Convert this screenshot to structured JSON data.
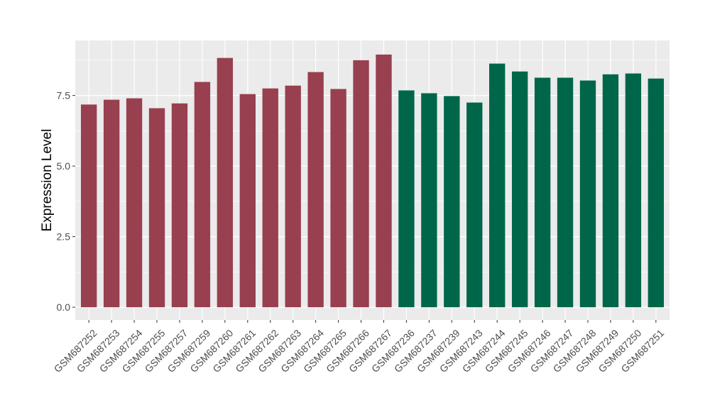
{
  "chart_data": {
    "type": "bar",
    "ylabel": "Expression Level",
    "xlabel": "",
    "title": "",
    "ylim": [
      -0.45,
      9.45
    ],
    "y_ticks": [
      0.0,
      2.5,
      5.0,
      7.5
    ],
    "y_tick_labels": [
      "0.0",
      "2.5",
      "5.0",
      "7.5"
    ],
    "grid": true,
    "colors": {
      "panel_background": "#EBEBEB",
      "grid": "#FFFFFF",
      "group1": "#98404F",
      "group2": "#00664A",
      "axis_text": "#4D4D4D",
      "axis_title": "#000000"
    },
    "categories": [
      "GSM687252",
      "GSM687253",
      "GSM687254",
      "GSM687255",
      "GSM687257",
      "GSM687259",
      "GSM687260",
      "GSM687261",
      "GSM687262",
      "GSM687263",
      "GSM687264",
      "GSM687265",
      "GSM687266",
      "GSM687267",
      "GSM687236",
      "GSM687237",
      "GSM687239",
      "GSM687243",
      "GSM687244",
      "GSM687245",
      "GSM687246",
      "GSM687247",
      "GSM687248",
      "GSM687249",
      "GSM687250",
      "GSM687251"
    ],
    "values": [
      7.18,
      7.35,
      7.4,
      7.05,
      7.22,
      7.98,
      8.83,
      7.55,
      7.75,
      7.85,
      8.33,
      7.73,
      8.75,
      8.95,
      7.68,
      7.58,
      7.48,
      7.25,
      8.63,
      8.35,
      8.13,
      8.13,
      8.03,
      8.25,
      8.28,
      8.1
    ],
    "groups": [
      "group1",
      "group1",
      "group1",
      "group1",
      "group1",
      "group1",
      "group1",
      "group1",
      "group1",
      "group1",
      "group1",
      "group1",
      "group1",
      "group1",
      "group2",
      "group2",
      "group2",
      "group2",
      "group2",
      "group2",
      "group2",
      "group2",
      "group2",
      "group2",
      "group2",
      "group2"
    ]
  }
}
